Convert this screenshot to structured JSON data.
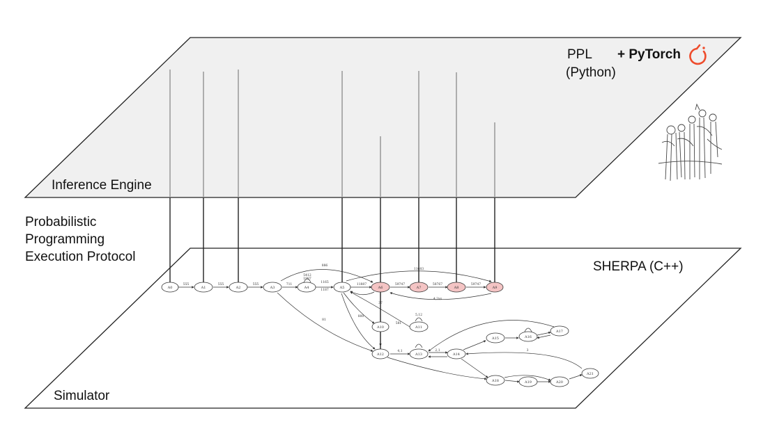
{
  "top_plane": {
    "ppl_line1": "PPL",
    "ppl_line2": "(Python)",
    "pytorch": "+ PyTorch",
    "engine": "Inference Engine"
  },
  "protocol": {
    "line1": "Probabilistic",
    "line2": "Programming",
    "line3": "Execution Protocol"
  },
  "bottom_plane": {
    "sherpa": "SHERPA (C++)",
    "simulator": "Simulator"
  },
  "colors": {
    "top_plane_fill": "#e3e3e3",
    "bottom_plane_fill": "#ffffff",
    "highlight_node": "#f4c4c4",
    "pytorch_logo": "#ee4c2c"
  },
  "graph": {
    "nodes": [
      {
        "id": "A0",
        "label": "A0"
      },
      {
        "id": "A1",
        "label": "A1"
      },
      {
        "id": "A2",
        "label": "A2"
      },
      {
        "id": "A3",
        "label": "A3"
      },
      {
        "id": "A4",
        "label": "A4"
      },
      {
        "id": "A5",
        "label": "A5"
      },
      {
        "id": "A6",
        "label": "A6"
      },
      {
        "id": "A7",
        "label": "A7"
      },
      {
        "id": "A8",
        "label": "A8"
      },
      {
        "id": "A9",
        "label": "A9"
      },
      {
        "id": "A10",
        "label": "A10"
      },
      {
        "id": "A11",
        "label": "A11"
      },
      {
        "id": "A12",
        "label": "A12"
      },
      {
        "id": "A13",
        "label": "A13"
      },
      {
        "id": "A14",
        "label": "A14"
      },
      {
        "id": "A15",
        "label": "A15"
      },
      {
        "id": "A16",
        "label": "A16"
      },
      {
        "id": "A17",
        "label": "A17"
      },
      {
        "id": "A18",
        "label": "A18"
      },
      {
        "id": "A19",
        "label": "A19"
      },
      {
        "id": "A20",
        "label": "A20"
      },
      {
        "id": "A21",
        "label": "A21"
      }
    ],
    "edge_labels": [
      "555",
      "555",
      "555",
      "711",
      "1165",
      "5412",
      "1187",
      "1987",
      "11887",
      "59747",
      "58767",
      "59747",
      "11683",
      "4,2xx",
      "886",
      "800",
      "581",
      "37",
      "5,12",
      "81",
      "4,1",
      "2,1",
      "3"
    ]
  }
}
